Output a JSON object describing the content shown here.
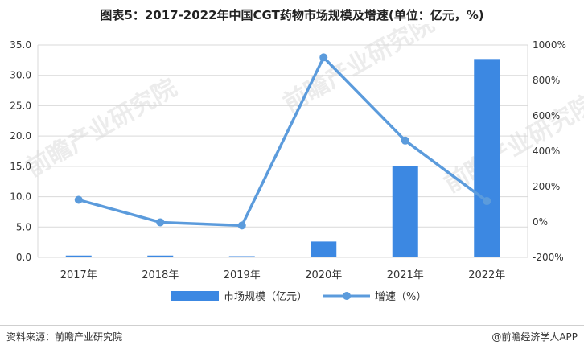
{
  "header": {
    "title": "图表5：2017-2022年中国CGT药物市场规模及增速(单位：亿元，%)"
  },
  "footer": {
    "source": "资料来源：前瞻产业研究院",
    "brand": "@前瞻经济学人APP"
  },
  "watermark": {
    "text": "前瞻产业研究院"
  },
  "colors": {
    "bar": "#3c88e2",
    "line": "#5b9bdc",
    "grid": "#d9d9d9",
    "text": "#333333"
  },
  "chart_data": {
    "type": "bar",
    "title": "图表5：2017-2022年中国CGT药物市场规模及增速(单位：亿元，%)",
    "categories": [
      "2017年",
      "2018年",
      "2019年",
      "2020年",
      "2021年",
      "2022年"
    ],
    "series": [
      {
        "name": "市场规模（亿元）",
        "type": "bar",
        "axis": "left",
        "values": [
          0.3,
          0.3,
          0.2,
          2.6,
          15.0,
          32.7
        ]
      },
      {
        "name": "增速（%）",
        "type": "line",
        "axis": "right",
        "values": [
          125,
          -2,
          -20,
          930,
          460,
          118
        ]
      }
    ],
    "y_left": {
      "ylim": [
        0,
        35
      ],
      "ticks": [
        "0.0",
        "5.0",
        "10.0",
        "15.0",
        "20.0",
        "25.0",
        "30.0",
        "35.0"
      ]
    },
    "y_right": {
      "ylim": [
        -200,
        1000
      ],
      "ticks": [
        "-200%",
        "0%",
        "200%",
        "400%",
        "600%",
        "800%",
        "1000%"
      ]
    },
    "grid": true,
    "legend": "bottom"
  }
}
